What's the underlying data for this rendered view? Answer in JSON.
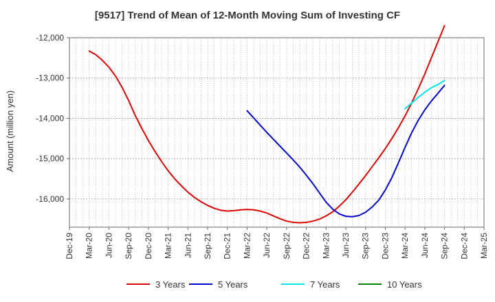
{
  "chart_data": {
    "type": "line",
    "title": "[9517]  Trend of Mean of 12-Month Moving Sum of Investing CF",
    "xlabel": "",
    "ylabel": "Amount (million yen)",
    "ylim": [
      -16700,
      -12000
    ],
    "yticks": [
      -12000,
      -13000,
      -14000,
      -15000,
      -16000
    ],
    "ytick_labels": [
      "-12,000",
      "-13,000",
      "-14,000",
      "-15,000",
      "-16,000"
    ],
    "xtick_labels": [
      "Dec-19",
      "Mar-20",
      "Jun-20",
      "Sep-20",
      "Dec-20",
      "Mar-21",
      "Jun-21",
      "Sep-21",
      "Dec-21",
      "Mar-22",
      "Jun-22",
      "Sep-22",
      "Dec-22",
      "Mar-23",
      "Jun-23",
      "Sep-23",
      "Dec-23",
      "Mar-24",
      "Jun-24",
      "Sep-24",
      "Dec-24",
      "Mar-25"
    ],
    "x_unit": "month index from Dec-19",
    "grid": true,
    "legend_position": "bottom",
    "series": [
      {
        "name": "3 Years",
        "color": "#dd0000",
        "x": [
          3,
          4,
          5,
          6,
          7,
          8,
          9,
          10,
          11,
          12,
          13,
          14,
          15,
          16,
          17,
          18,
          19,
          20,
          21,
          22,
          23,
          24,
          25,
          26,
          27,
          28,
          29,
          30,
          31,
          32,
          33,
          34,
          35,
          36,
          37,
          38,
          39,
          40,
          41,
          42,
          43,
          44,
          45,
          46,
          47,
          48,
          49,
          50,
          51,
          52,
          53,
          54,
          55,
          56,
          57
        ],
        "values": [
          -12330,
          -12420,
          -12560,
          -12730,
          -12950,
          -13230,
          -13560,
          -13930,
          -14250,
          -14550,
          -14820,
          -15070,
          -15300,
          -15500,
          -15670,
          -15830,
          -15960,
          -16070,
          -16160,
          -16230,
          -16280,
          -16300,
          -16290,
          -16270,
          -16260,
          -16270,
          -16300,
          -16350,
          -16420,
          -16490,
          -16550,
          -16580,
          -16590,
          -16580,
          -16550,
          -16500,
          -16420,
          -16320,
          -16180,
          -16020,
          -15830,
          -15630,
          -15420,
          -15200,
          -14980,
          -14750,
          -14500,
          -14230,
          -13940,
          -13620,
          -13270,
          -12900,
          -12500,
          -12100,
          -11700
        ]
      },
      {
        "name": "5 Years",
        "color": "#0000cc",
        "x": [
          27,
          28,
          29,
          30,
          31,
          32,
          33,
          34,
          35,
          36,
          37,
          38,
          39,
          40,
          41,
          42,
          43,
          44,
          45,
          46,
          47,
          48,
          49,
          50,
          51,
          52,
          53,
          54,
          55,
          56,
          57
        ],
        "values": [
          -13810,
          -13990,
          -14170,
          -14350,
          -14520,
          -14690,
          -14860,
          -15030,
          -15210,
          -15410,
          -15620,
          -15850,
          -16080,
          -16250,
          -16370,
          -16430,
          -16440,
          -16410,
          -16330,
          -16200,
          -16030,
          -15780,
          -15470,
          -15100,
          -14720,
          -14360,
          -14050,
          -13790,
          -13570,
          -13380,
          -13180
        ]
      },
      {
        "name": "7 Years",
        "color": "#00e5ee",
        "x": [
          51,
          52,
          53,
          54,
          55,
          56,
          57
        ],
        "values": [
          -13760,
          -13620,
          -13480,
          -13350,
          -13240,
          -13160,
          -13060
        ]
      },
      {
        "name": "10 Years",
        "color": "#008000",
        "x": [],
        "values": []
      }
    ]
  }
}
